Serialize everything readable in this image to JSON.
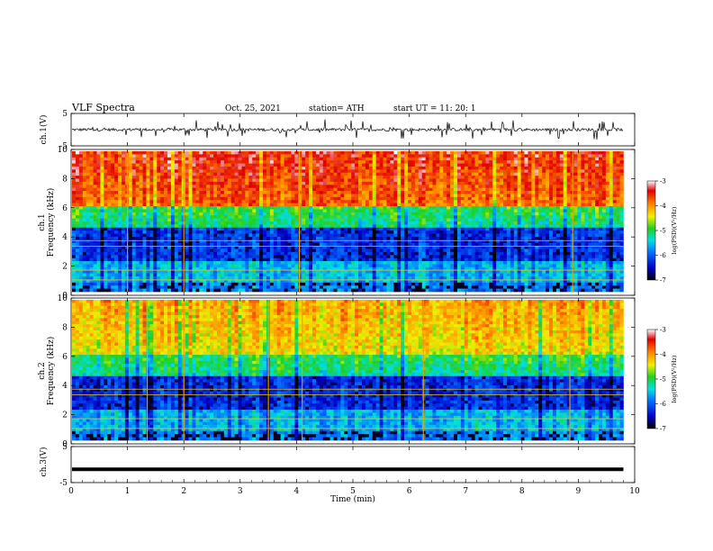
{
  "header": {
    "title": "VLF  Spectra",
    "date": "Oct. 25, 2021",
    "station": "station= ATH",
    "start": "start  UT  =    11: 20: 1"
  },
  "chart_data": [
    {
      "type": "line",
      "ylabel": "ch.1(V)",
      "ylim": [
        -5,
        5
      ],
      "yticks": [
        "5",
        "-5"
      ],
      "note": "time-domain waveform of ch.1"
    },
    {
      "type": "heatmap",
      "ylabel": "Frequency (kHz)",
      "channel_label": "ch.1",
      "ylim": [
        0,
        10
      ],
      "yticks": [
        "0",
        "2",
        "4",
        "6",
        "8",
        "10"
      ],
      "colorbar": {
        "label": "log(PSD)(V²/Hz)",
        "ticks": [
          "-3",
          "-4",
          "-5",
          "-6",
          "-7"
        ],
        "range": [
          -7,
          -3
        ]
      }
    },
    {
      "type": "heatmap",
      "ylabel": "Frequency (kHz)",
      "channel_label": "ch.2",
      "ylim": [
        0,
        10
      ],
      "yticks": [
        "0",
        "2",
        "4",
        "6",
        "8",
        "10"
      ],
      "colorbar": {
        "label": "log(PSD)(V²/Hz)",
        "ticks": [
          "-3",
          "-4",
          "-5",
          "-6",
          "-7"
        ],
        "range": [
          -7,
          -3
        ]
      }
    },
    {
      "type": "line",
      "ylabel": "ch.3(V)",
      "ylim": [
        -5,
        5
      ],
      "yticks": [
        "5",
        "-5"
      ],
      "level": -1.3
    }
  ],
  "xaxis": {
    "label": "Time  (min)",
    "xlim": [
      0,
      10
    ],
    "ticks": [
      "0",
      "1",
      "2",
      "3",
      "4",
      "5",
      "6",
      "7",
      "8",
      "9",
      "10"
    ]
  }
}
